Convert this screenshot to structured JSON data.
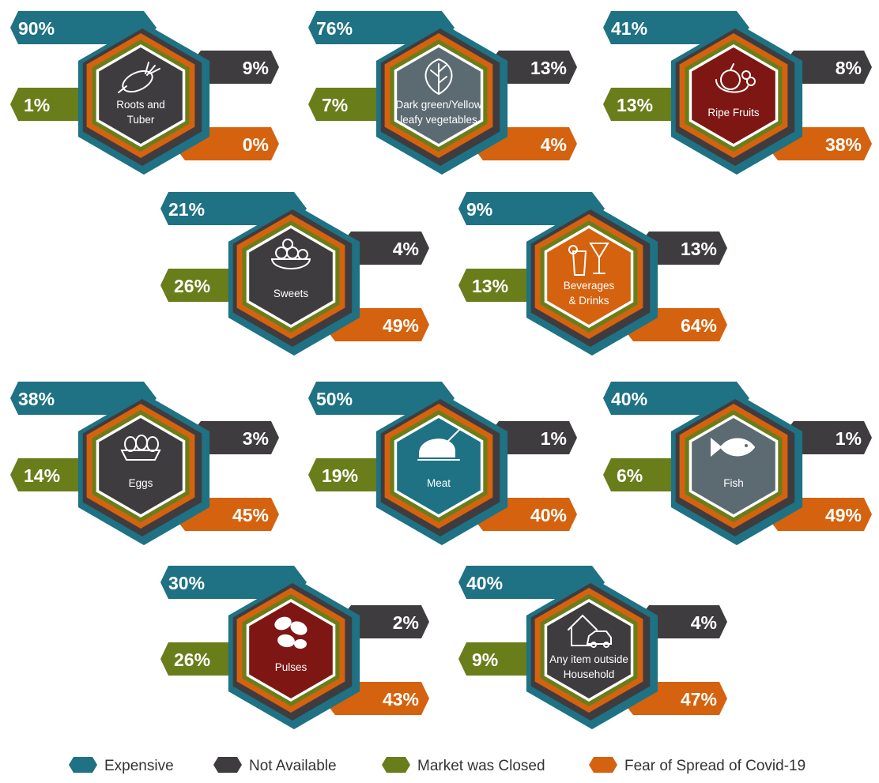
{
  "chart_data": {
    "type": "infographic",
    "title": "",
    "series_names": [
      "Expensive",
      "Not Available",
      "Market was Closed",
      "Fear of Spread of Covid-19"
    ],
    "colors": {
      "Expensive": "#1E7283",
      "Not Available": "#3F3C40",
      "Market was Closed": "#6A7D1B",
      "Fear of Spread of Covid-19": "#D5620E"
    },
    "categories": [
      {
        "name": "Roots and Tuber",
        "label_lines": [
          "Roots and",
          "Tuber"
        ],
        "hex_color": "#3F3C40",
        "icon": "root-vegetables-icon",
        "values": {
          "Expensive": "90%",
          "Not Available": "9%",
          "Market was Closed": "1%",
          "Fear of Spread of Covid-19": "0%"
        }
      },
      {
        "name": "Dark green/Yellow leafy vegetables",
        "label_lines": [
          "Dark green/Yellow",
          "leafy vegetables"
        ],
        "hex_color": "#5C6A72",
        "icon": "leafy-vegetable-icon",
        "values": {
          "Expensive": "76%",
          "Not Available": "13%",
          "Market was Closed": "7%",
          "Fear of Spread of Covid-19": "4%"
        }
      },
      {
        "name": "Ripe Fruits",
        "label_lines": [
          "Ripe Fruits"
        ],
        "hex_color": "#7E1713",
        "icon": "fruits-icon",
        "values": {
          "Expensive": "41%",
          "Not Available": "8%",
          "Market was Closed": "13%",
          "Fear of Spread of Covid-19": "38%"
        }
      },
      {
        "name": "Sweets",
        "label_lines": [
          "Sweets"
        ],
        "hex_color": "#3F3C40",
        "icon": "sweets-bowl-icon",
        "values": {
          "Expensive": "21%",
          "Not Available": "4%",
          "Market was Closed": "26%",
          "Fear of Spread of Covid-19": "49%"
        }
      },
      {
        "name": "Beverages & Drinks",
        "label_lines": [
          "Beverages",
          "& Drinks"
        ],
        "hex_color": "#D5620E",
        "icon": "drinks-icon",
        "values": {
          "Expensive": "9%",
          "Not Available": "13%",
          "Market was Closed": "13%",
          "Fear of Spread of Covid-19": "64%"
        }
      },
      {
        "name": "Eggs",
        "label_lines": [
          "Eggs"
        ],
        "hex_color": "#3F3C40",
        "icon": "eggs-icon",
        "values": {
          "Expensive": "38%",
          "Not Available": "3%",
          "Market was Closed": "14%",
          "Fear of Spread of Covid-19": "45%"
        }
      },
      {
        "name": "Meat",
        "label_lines": [
          "Meat"
        ],
        "hex_color": "#1E7283",
        "icon": "roast-chicken-icon",
        "values": {
          "Expensive": "50%",
          "Not Available": "1%",
          "Market was Closed": "19%",
          "Fear of Spread of Covid-19": "40%"
        }
      },
      {
        "name": "Fish",
        "label_lines": [
          "Fish"
        ],
        "hex_color": "#5C6A72",
        "icon": "fish-icon",
        "values": {
          "Expensive": "40%",
          "Not Available": "1%",
          "Market was Closed": "6%",
          "Fear of Spread of Covid-19": "49%"
        }
      },
      {
        "name": "Pulses",
        "label_lines": [
          "Pulses"
        ],
        "hex_color": "#7E1713",
        "icon": "beans-icon",
        "values": {
          "Expensive": "30%",
          "Not Available": "2%",
          "Market was Closed": "26%",
          "Fear of Spread of Covid-19": "43%"
        }
      },
      {
        "name": "Any item outside Household",
        "label_lines": [
          "Any item outside",
          "Household"
        ],
        "hex_color": "#3F3C40",
        "icon": "house-car-icon",
        "values": {
          "Expensive": "40%",
          "Not Available": "4%",
          "Market was Closed": "9%",
          "Fear of Spread of Covid-19": "47%"
        }
      }
    ],
    "legend": [
      {
        "label": "Expensive",
        "color": "#1E7283"
      },
      {
        "label": "Not Available",
        "color": "#3F3C40"
      },
      {
        "label": "Market was Closed",
        "color": "#6A7D1B"
      },
      {
        "label": "Fear of Spread of Covid-19",
        "color": "#D5620E"
      }
    ],
    "legend_position": "bottom"
  }
}
